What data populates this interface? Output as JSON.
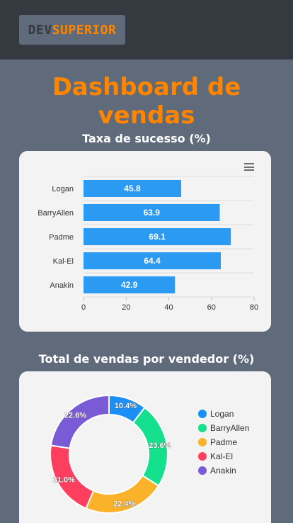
{
  "header": {
    "logo_dev": "DEV",
    "logo_superior": "SUPERIOR"
  },
  "page_title": "Dashboard de vendas",
  "charts_meta": {
    "bar_title": "Taxa de sucesso (%)",
    "donut_title": "Total de vendas por vendedor (%)",
    "bar_menu_icon": "hamburger-menu-icon"
  },
  "chart_data": [
    {
      "type": "bar",
      "orientation": "horizontal",
      "title": "Taxa de sucesso (%)",
      "categories": [
        "Logan",
        "BarryAllen",
        "Padme",
        "Kal-El",
        "Anakin"
      ],
      "values": [
        45.8,
        63.9,
        69.1,
        64.4,
        42.9
      ],
      "data_labels": [
        "45.8",
        "63.9",
        "69.1",
        "64.4",
        "42.9"
      ],
      "xlim": [
        0,
        80
      ],
      "xticks": [
        "0",
        "20",
        "40",
        "60",
        "80"
      ],
      "color": "#2b9af3",
      "grid": true
    },
    {
      "type": "pie",
      "donut": true,
      "title": "Total de vendas por vendedor (%)",
      "labels": [
        "Logan",
        "BarryAllen",
        "Padme",
        "Kal-El",
        "Anakin"
      ],
      "values": [
        10.4,
        23.6,
        22.4,
        21.0,
        22.6
      ],
      "data_labels": [
        "10.4%",
        "23.6%",
        "22.4%",
        "21.0%",
        "22.6%"
      ],
      "colors": [
        "#1a8ff5",
        "#15e08e",
        "#fbb22b",
        "#fc3f5e",
        "#7b5ad5"
      ],
      "legend_position": "right"
    }
  ]
}
